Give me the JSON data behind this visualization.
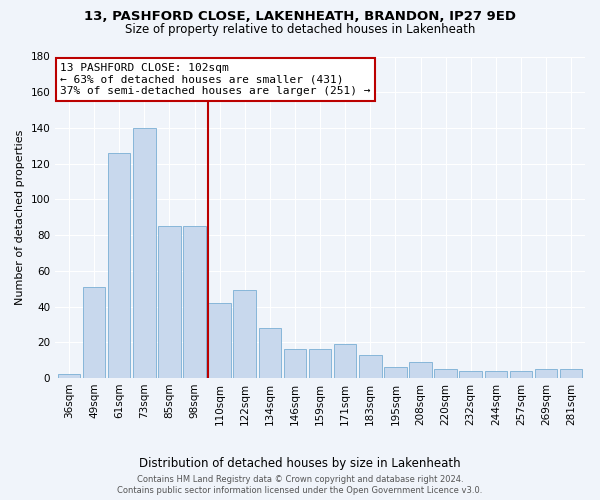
{
  "title1": "13, PASHFORD CLOSE, LAKENHEATH, BRANDON, IP27 9ED",
  "title2": "Size of property relative to detached houses in Lakenheath",
  "xlabel": "Distribution of detached houses by size in Lakenheath",
  "ylabel": "Number of detached properties",
  "categories": [
    "36sqm",
    "49sqm",
    "61sqm",
    "73sqm",
    "85sqm",
    "98sqm",
    "110sqm",
    "122sqm",
    "134sqm",
    "146sqm",
    "159sqm",
    "171sqm",
    "183sqm",
    "195sqm",
    "208sqm",
    "220sqm",
    "232sqm",
    "244sqm",
    "257sqm",
    "269sqm",
    "281sqm"
  ],
  "values": [
    2,
    51,
    126,
    140,
    85,
    85,
    42,
    49,
    28,
    16,
    16,
    19,
    13,
    6,
    9,
    5,
    4,
    4,
    4,
    5,
    5
  ],
  "bar_color": "#c8d8ed",
  "bar_edge_color": "#7aafd4",
  "vline_color": "#bb0000",
  "annotation_text": "13 PASHFORD CLOSE: 102sqm\n← 63% of detached houses are smaller (431)\n37% of semi-detached houses are larger (251) →",
  "annotation_box_color": "white",
  "annotation_box_edge_color": "#bb0000",
  "ylim": [
    0,
    180
  ],
  "yticks": [
    0,
    20,
    40,
    60,
    80,
    100,
    120,
    140,
    160,
    180
  ],
  "title_fontsize": 9.5,
  "subtitle_fontsize": 8.5,
  "xlabel_fontsize": 8.5,
  "ylabel_fontsize": 8,
  "tick_fontsize": 7.5,
  "annotation_fontsize": 8,
  "footer1": "Contains HM Land Registry data © Crown copyright and database right 2024.",
  "footer2": "Contains public sector information licensed under the Open Government Licence v3.0.",
  "bg_color": "#f0f4fa",
  "plot_bg_color": "#f0f4fa"
}
